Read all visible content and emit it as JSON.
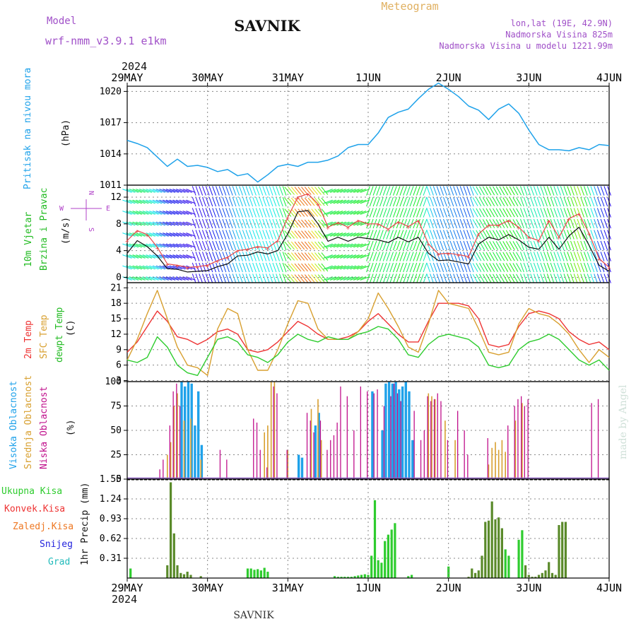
{
  "header": {
    "title": "SAVNIK",
    "subtitle": "Meteogram",
    "model_label": "Model",
    "model_name": "wrf-nmm_v3.9.1  e1km",
    "location_coords": "lon,lat (19E, 42.9N)",
    "elevation": "Nadmorska Visina 825m",
    "model_elevation": "Nadmorska Visina u modelu 1221.99m",
    "year_top": "2024",
    "year_bottom": "2024",
    "footer": "SAVNIK",
    "watermark": "made by Angel"
  },
  "colors": {
    "pressure": "#1fa2ea",
    "temp2m": "#ee3333",
    "sfc_temp": "#d8a030",
    "dewpoint": "#2ecc2e",
    "wind_title": "#22bb22",
    "dir_legend": "#b040c8",
    "high_cloud": "#1fa2ea",
    "mid_cloud": "#d8a030",
    "low_cloud": "#c0108c",
    "total_precip": "#2ecc2e",
    "conv_precip": "#ee3333",
    "strat_precip": "#ee7722",
    "snow": "#2222dd",
    "graupel": "#22bbbb",
    "header_purple": "#a050c8",
    "meteogram_title": "#e0b060"
  },
  "chart_data": [
    {
      "type": "line",
      "panel": "pressure",
      "ylabel": "(hPa)",
      "side_title": [
        "Pritisak na nivou mora"
      ],
      "x_ticks": [
        "29MAY",
        "30MAY",
        "31MAY",
        "1JUN",
        "2JUN",
        "3JUN",
        "4JUN"
      ],
      "ylim": [
        1011,
        1020.5
      ],
      "yticks": [
        1011,
        1014,
        1017,
        1020
      ],
      "grid": true,
      "series": [
        {
          "color_key": "pressure",
          "x": [
            0,
            3,
            6,
            9,
            12,
            15,
            18,
            21,
            24,
            27,
            30,
            33,
            36,
            39,
            42,
            45,
            48,
            51,
            54,
            57,
            60,
            63,
            66,
            69,
            72,
            75,
            78,
            81,
            84,
            87,
            90,
            93,
            96,
            99,
            102,
            105,
            108,
            111,
            114,
            117,
            120,
            123,
            126,
            129,
            132,
            135,
            138,
            141,
            144
          ],
          "y": [
            1015.3,
            1015.0,
            1014.6,
            1013.7,
            1012.8,
            1013.5,
            1012.8,
            1012.9,
            1012.7,
            1012.3,
            1012.5,
            1011.9,
            1012.1,
            1011.3,
            1012.0,
            1012.8,
            1013.0,
            1012.8,
            1013.2,
            1013.2,
            1013.4,
            1013.8,
            1014.6,
            1014.9,
            1014.9,
            1016.0,
            1017.5,
            1018.0,
            1018.3,
            1019.3,
            1020.2,
            1020.8,
            1020.2,
            1019.5,
            1018.6,
            1018.2,
            1017.3,
            1018.3,
            1018.8,
            1017.9,
            1016.3,
            1014.9,
            1014.4,
            1014.4,
            1014.3,
            1014.6,
            1014.4,
            1014.9,
            1014.8
          ]
        }
      ]
    },
    {
      "type": "line",
      "panel": "wind",
      "ylabel": "(m/s)",
      "side_title": [
        "10m Vjetar",
        "Brzina i Pravac"
      ],
      "direction_legend": {
        "n": "N",
        "s": "S",
        "w": "W",
        "e": "E"
      },
      "ylim": [
        -0.8,
        13.8
      ],
      "yticks": [
        0,
        4,
        8,
        12
      ],
      "grid": true,
      "series": [
        {
          "name_key": "speed",
          "color": "#111111",
          "x": [
            0,
            3,
            6,
            9,
            12,
            15,
            18,
            21,
            24,
            27,
            30,
            33,
            36,
            39,
            42,
            45,
            48,
            51,
            54,
            57,
            60,
            63,
            66,
            69,
            72,
            75,
            78,
            81,
            84,
            87,
            90,
            93,
            96,
            99,
            102,
            105,
            108,
            111,
            114,
            117,
            120,
            123,
            126,
            129,
            132,
            135,
            138,
            141,
            144
          ],
          "y": [
            3.6,
            5.5,
            4.6,
            3.2,
            1.3,
            1.2,
            0.8,
            0.9,
            1.0,
            1.6,
            2.0,
            3.2,
            3.3,
            3.8,
            3.5,
            4.0,
            6.5,
            9.8,
            10.0,
            8.0,
            5.4,
            6.0,
            5.4,
            6.0,
            5.8,
            5.6,
            5.2,
            6.0,
            5.3,
            6.0,
            3.6,
            2.5,
            2.6,
            2.3,
            2.0,
            5.0,
            6.0,
            5.6,
            6.4,
            5.6,
            4.5,
            4.2,
            6.0,
            4.2,
            6.2,
            7.5,
            4.8,
            1.8,
            0.9
          ]
        },
        {
          "name_key": "gust",
          "color": "#e84848",
          "x": [
            0,
            3,
            6,
            9,
            12,
            15,
            18,
            21,
            24,
            27,
            30,
            33,
            36,
            39,
            42,
            45,
            48,
            51,
            54,
            57,
            60,
            63,
            66,
            69,
            72,
            75,
            78,
            81,
            84,
            87,
            90,
            93,
            96,
            99,
            102,
            105,
            108,
            111,
            114,
            117,
            120,
            123,
            126,
            129,
            132,
            135,
            138,
            141,
            144
          ],
          "y": [
            5.5,
            7.0,
            6.4,
            4.5,
            2.0,
            1.8,
            1.5,
            1.6,
            1.8,
            2.5,
            3.0,
            4.0,
            4.2,
            4.6,
            4.4,
            5.5,
            9.0,
            12.0,
            12.5,
            11.0,
            7.5,
            8.2,
            7.5,
            8.5,
            8.0,
            8.0,
            7.2,
            8.3,
            7.6,
            8.5,
            5.0,
            3.5,
            3.6,
            3.4,
            3.1,
            6.5,
            7.8,
            7.8,
            8.5,
            7.5,
            6.0,
            5.5,
            8.5,
            6.0,
            8.8,
            9.5,
            6.6,
            2.8,
            1.5
          ]
        }
      ]
    },
    {
      "type": "line",
      "panel": "temperature",
      "ylabel": "(C)",
      "side_title": [
        "2m Temp",
        "SFC Temp",
        "dewpt Temp"
      ],
      "ylim": [
        2.8,
        22
      ],
      "yticks": [
        3,
        6,
        9,
        12,
        15,
        18,
        21
      ],
      "grid": true,
      "series": [
        {
          "color_key": "temp2m",
          "x": [
            0,
            3,
            6,
            9,
            12,
            15,
            18,
            21,
            24,
            27,
            30,
            33,
            36,
            39,
            42,
            45,
            48,
            51,
            54,
            57,
            60,
            63,
            66,
            69,
            72,
            75,
            78,
            81,
            84,
            87,
            90,
            93,
            96,
            99,
            102,
            105,
            108,
            111,
            114,
            117,
            120,
            123,
            126,
            129,
            132,
            135,
            138,
            141,
            144
          ],
          "y": [
            8.5,
            10.5,
            13.5,
            16.5,
            14.5,
            11.5,
            11.0,
            10.0,
            11.0,
            12.5,
            13.0,
            12.0,
            9.0,
            8.5,
            9.0,
            10.5,
            12.5,
            14.5,
            13.5,
            12.0,
            11.0,
            11.0,
            11.5,
            12.5,
            14.5,
            16.0,
            14.0,
            12.0,
            10.5,
            10.5,
            14.5,
            18.0,
            18.0,
            18.0,
            17.5,
            15.0,
            10.0,
            9.5,
            10.0,
            13.5,
            16.0,
            16.5,
            16.0,
            15.0,
            12.5,
            11.0,
            10.0,
            10.5,
            9.0
          ]
        },
        {
          "color_key": "sfc_temp",
          "x": [
            0,
            3,
            6,
            9,
            12,
            15,
            18,
            21,
            24,
            27,
            30,
            33,
            36,
            39,
            42,
            45,
            48,
            51,
            54,
            57,
            60,
            63,
            66,
            69,
            72,
            75,
            78,
            81,
            84,
            87,
            90,
            93,
            96,
            99,
            102,
            105,
            108,
            111,
            114,
            117,
            120,
            123,
            126,
            129,
            132,
            135,
            138,
            141,
            144
          ],
          "y": [
            7.0,
            11.0,
            16.0,
            20.5,
            15.0,
            9.5,
            6.0,
            5.5,
            4.0,
            13.0,
            17.0,
            16.0,
            9.0,
            5.0,
            5.0,
            9.0,
            14.0,
            18.5,
            18.0,
            13.0,
            11.0,
            11.0,
            11.0,
            12.5,
            15.0,
            20.0,
            17.0,
            13.5,
            9.5,
            8.5,
            14.0,
            20.5,
            18.0,
            17.5,
            17.0,
            13.0,
            8.5,
            8.0,
            8.5,
            14.0,
            17.0,
            16.0,
            15.5,
            14.0,
            12.0,
            9.0,
            6.5,
            9.0,
            7.5
          ]
        },
        {
          "color_key": "dewpoint",
          "x": [
            0,
            3,
            6,
            9,
            12,
            15,
            18,
            21,
            24,
            27,
            30,
            33,
            36,
            39,
            42,
            45,
            48,
            51,
            54,
            57,
            60,
            63,
            66,
            69,
            72,
            75,
            78,
            81,
            84,
            87,
            90,
            93,
            96,
            99,
            102,
            105,
            108,
            111,
            114,
            117,
            120,
            123,
            126,
            129,
            132,
            135,
            138,
            141,
            144
          ],
          "y": [
            7.0,
            6.5,
            7.5,
            11.5,
            9.5,
            6.0,
            4.5,
            4.0,
            7.5,
            11.0,
            11.5,
            10.5,
            8.0,
            7.5,
            6.5,
            8.0,
            10.5,
            12.0,
            11.0,
            10.5,
            11.5,
            11.0,
            11.0,
            12.0,
            12.5,
            13.5,
            13.0,
            11.0,
            8.0,
            7.5,
            10.0,
            11.5,
            12.0,
            11.5,
            11.0,
            9.5,
            6.0,
            5.5,
            6.0,
            9.0,
            10.5,
            11.0,
            12.0,
            11.0,
            9.0,
            7.0,
            6.0,
            7.0,
            5.0
          ]
        }
      ]
    },
    {
      "type": "bar",
      "panel": "clouds",
      "ylabel": "(%)",
      "side_title": [
        "Visoka Oblacnost",
        "Srednja Oblacnost",
        "Niska Oblacnost"
      ],
      "ylim": [
        0,
        100
      ],
      "yticks": [
        0,
        25,
        50,
        75,
        100
      ],
      "grid": true,
      "series": [
        {
          "color_key": "high_cloud",
          "x": [
            16,
            17,
            18,
            19,
            20,
            21,
            22,
            51,
            52,
            56,
            57,
            73,
            76,
            77,
            78,
            79,
            80,
            81,
            82,
            83,
            84,
            85
          ],
          "values": [
            100,
            95,
            100,
            98,
            55,
            90,
            35,
            25,
            22,
            55,
            68,
            90,
            50,
            98,
            100,
            98,
            100,
            92,
            95,
            100,
            90,
            40
          ]
        },
        {
          "color_key": "mid_cloud",
          "x": [
            12,
            13,
            14,
            15,
            17,
            19,
            22,
            41,
            42,
            43,
            44,
            48,
            55,
            57,
            58,
            90,
            91,
            92,
            95,
            98,
            108,
            109,
            110,
            111,
            112,
            113,
            116,
            118
          ],
          "values": [
            25,
            38,
            75,
            88,
            60,
            62,
            20,
            48,
            55,
            100,
            100,
            30,
            72,
            82,
            40,
            88,
            85,
            82,
            60,
            40,
            15,
            32,
            38,
            30,
            40,
            28,
            60,
            78
          ]
        },
        {
          "color_key": "low_cloud",
          "x": [
            10,
            11,
            13,
            14,
            15,
            16,
            28,
            30,
            38,
            39,
            40,
            42,
            44,
            45,
            48,
            54,
            55,
            56,
            58,
            60,
            61,
            62,
            63,
            64,
            66,
            68,
            70,
            72,
            74,
            75,
            77,
            79,
            80,
            81,
            82,
            86,
            88,
            89,
            90,
            91,
            92,
            93,
            94,
            96,
            99,
            101,
            102,
            108,
            114,
            116,
            117,
            118,
            119,
            120,
            139,
            141
          ],
          "values": [
            10,
            20,
            55,
            90,
            98,
            75,
            30,
            20,
            62,
            58,
            30,
            12,
            95,
            88,
            30,
            68,
            60,
            48,
            60,
            30,
            40,
            45,
            58,
            95,
            85,
            50,
            95,
            90,
            88,
            92,
            75,
            85,
            98,
            88,
            80,
            70,
            40,
            50,
            85,
            80,
            82,
            88,
            80,
            40,
            70,
            50,
            25,
            42,
            55,
            75,
            82,
            85,
            75,
            82,
            78,
            82
          ]
        }
      ]
    },
    {
      "type": "bar",
      "panel": "precipitation",
      "ylabel": "1hr Precip (mm)",
      "side_title": [
        "Ukupna Kisa",
        "Konvek.Kisa",
        "Zaledj.Kisa",
        "Snijeg",
        "Grad"
      ],
      "ylim": [
        0,
        1.55
      ],
      "yticks": [
        0.31,
        0.62,
        0.93,
        1.24,
        1.55
      ],
      "grid": true,
      "series": [
        {
          "color_key": "total_precip",
          "x": [
            1,
            12,
            13,
            14,
            15,
            16,
            17,
            18,
            19,
            22,
            36,
            37,
            38,
            39,
            40,
            41,
            42,
            62,
            63,
            64,
            65,
            66,
            67,
            68,
            69,
            70,
            71,
            72,
            73,
            74,
            75,
            76,
            77,
            78,
            79,
            80,
            84,
            85,
            96,
            102,
            103,
            104,
            105,
            106,
            107,
            108,
            109,
            110,
            111,
            112,
            113,
            114,
            117,
            118,
            119,
            120,
            121,
            122,
            123,
            124,
            125,
            126,
            127,
            128,
            129,
            130,
            131
          ],
          "values": [
            0.15,
            0.2,
            1.5,
            0.7,
            0.2,
            0.08,
            0.06,
            0.1,
            0.05,
            0.03,
            0.15,
            0.15,
            0.13,
            0.14,
            0.12,
            0.16,
            0.1,
            0.03,
            0.02,
            0.02,
            0.02,
            0.02,
            0.02,
            0.03,
            0.04,
            0.05,
            0.06,
            0.05,
            0.35,
            1.22,
            0.28,
            0.24,
            0.58,
            0.68,
            0.76,
            0.86,
            0.03,
            0.05,
            0.18,
            0.02,
            0.15,
            0.08,
            0.12,
            0.35,
            0.88,
            0.9,
            1.2,
            0.92,
            0.95,
            0.78,
            0.45,
            0.35,
            0.6,
            0.75,
            0.2,
            0.05,
            0.02,
            0.02,
            0.05,
            0.08,
            0.12,
            0.25,
            0.08,
            0.05,
            0.83,
            0.88,
            0.88
          ]
        }
      ]
    }
  ]
}
